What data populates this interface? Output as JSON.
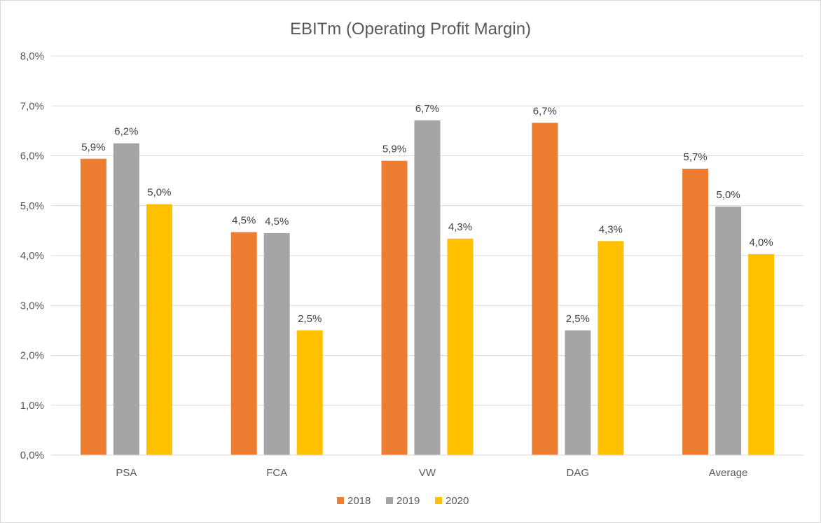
{
  "chart_data": {
    "type": "bar",
    "title": "EBITm (Operating Profit Margin)",
    "xlabel": "",
    "ylabel": "",
    "categories": [
      "PSA",
      "FCA",
      "VW",
      "DAG",
      "Average"
    ],
    "series": [
      {
        "name": "2018",
        "color": "#ed7d31",
        "values": [
          5.94,
          4.47,
          5.9,
          6.66,
          5.74
        ],
        "labels": [
          "5,9%",
          "4,5%",
          "5,9%",
          "6,7%",
          "5,7%"
        ]
      },
      {
        "name": "2019",
        "color": "#a5a5a5",
        "values": [
          6.25,
          4.45,
          6.71,
          2.5,
          4.98
        ],
        "labels": [
          "6,2%",
          "4,5%",
          "6,7%",
          "2,5%",
          "5,0%"
        ]
      },
      {
        "name": "2020",
        "color": "#ffc000",
        "values": [
          5.03,
          2.5,
          4.34,
          4.29,
          4.03
        ],
        "labels": [
          "5,0%",
          "2,5%",
          "4,3%",
          "4,3%",
          "4,0%"
        ]
      }
    ],
    "ylim": [
      0,
      8
    ],
    "yticks": [
      0,
      1,
      2,
      3,
      4,
      5,
      6,
      7,
      8
    ],
    "ytick_labels": [
      "0,0%",
      "1,0%",
      "2,0%",
      "3,0%",
      "4,0%",
      "5,0%",
      "6,0%",
      "7,0%",
      "8,0%"
    ],
    "grid": true,
    "legend_position": "bottom-center"
  }
}
